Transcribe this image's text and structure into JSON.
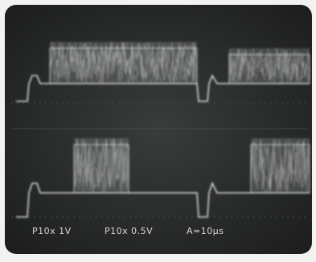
{
  "scope_labels": {
    "channel_1": "P10x 1V",
    "channel_2": "P10x 0.5V",
    "timebase": "A=10μs"
  }
}
